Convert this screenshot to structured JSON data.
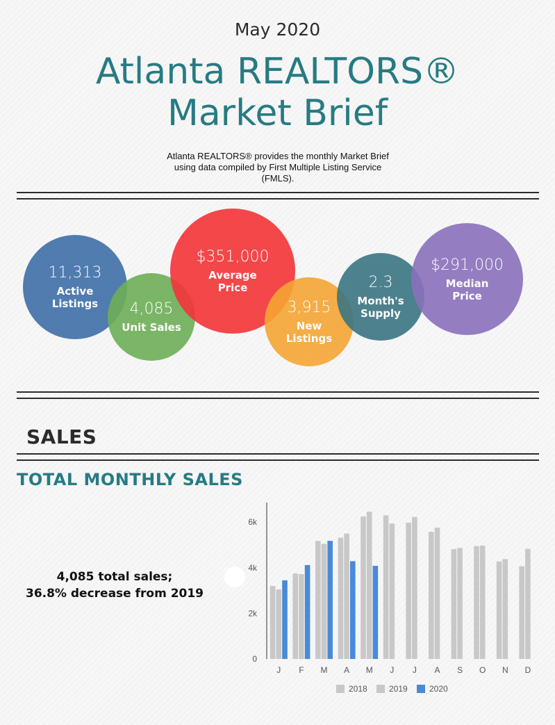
{
  "header": {
    "month": "May 2020",
    "title_line1": "Atlanta REALTORS®",
    "title_line2": "Market Brief",
    "intro": "Atlanta REALTORS® provides the monthly Market Brief using data compiled by First Multiple Listing Service (FMLS)."
  },
  "stats": [
    {
      "value": "11,313",
      "label_line1": "Active",
      "label_line2": "Listings",
      "color": "#3e6fa8"
    },
    {
      "value": "4,085",
      "label_line1": "Unit Sales",
      "label_line2": "",
      "color": "#6eae57"
    },
    {
      "value": "$351,000",
      "label_line1": "Average",
      "label_line2": "Price",
      "color": "#f43438"
    },
    {
      "value": "3,915",
      "label_line1": "New",
      "label_line2": "Listings",
      "color": "#f5a534"
    },
    {
      "value": "2.3",
      "label_line1": "Month's",
      "label_line2": "Supply",
      "color": "#3a7582"
    },
    {
      "value": "$291,000",
      "label_line1": "Median",
      "label_line2": "Price",
      "color": "#8a71bc"
    }
  ],
  "section": {
    "title": "SALES",
    "chart_heading": "TOTAL MONTHLY SALES",
    "summary_line1": "4,085 total sales;",
    "summary_line2": "36.8% decrease from 2019"
  },
  "chart_data": {
    "type": "bar",
    "title": "TOTAL MONTHLY SALES",
    "categories": [
      "J",
      "F",
      "M",
      "A",
      "M",
      "J",
      "J",
      "A",
      "S",
      "O",
      "N",
      "D"
    ],
    "series": [
      {
        "name": "2018",
        "color": "#c8c8c8",
        "values": [
          3200,
          3750,
          5180,
          5320,
          6250,
          6300,
          5980,
          5580,
          4820,
          4950,
          4280,
          4070
        ]
      },
      {
        "name": "2019",
        "color": "#c8c8c8",
        "values": [
          3050,
          3720,
          5050,
          5500,
          6460,
          5940,
          6230,
          5760,
          4870,
          4970,
          4380,
          4830
        ]
      },
      {
        "name": "2020",
        "color": "#4a8ad6",
        "values": [
          3450,
          4120,
          5180,
          4290,
          4085,
          null,
          null,
          null,
          null,
          null,
          null,
          null
        ]
      }
    ],
    "yticks": [
      {
        "value": 0,
        "label": "0"
      },
      {
        "value": 2000,
        "label": "2k"
      },
      {
        "value": 4000,
        "label": "4k"
      },
      {
        "value": 6000,
        "label": "6k"
      }
    ],
    "ylim": [
      0,
      6800
    ],
    "legend_position": "bottom",
    "grid": false
  }
}
